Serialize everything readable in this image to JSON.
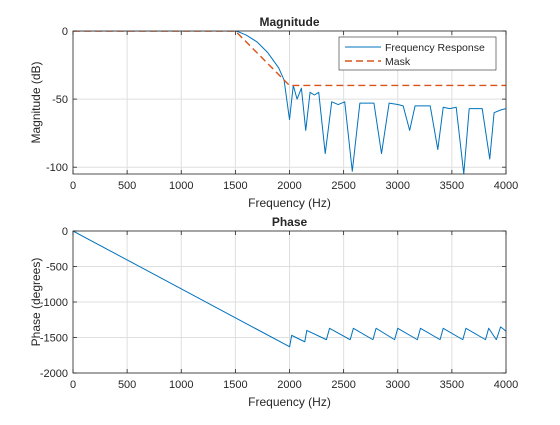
{
  "chart_data": [
    {
      "type": "line",
      "title": "Magnitude",
      "xlabel": "Frequency (Hz)",
      "ylabel": "Magnitude (dB)",
      "xlim": [
        0,
        4000
      ],
      "ylim": [
        -105,
        0
      ],
      "xticks": [
        0,
        500,
        1000,
        1500,
        2000,
        2500,
        3000,
        3500,
        4000
      ],
      "yticks": [
        0,
        -50,
        -100
      ],
      "grid": true,
      "legend_position": "top-right",
      "series": [
        {
          "name": "Frequency Response",
          "color": "#0072BD",
          "style": "solid",
          "x": [
            0,
            500,
            1000,
            1500,
            1525,
            1600,
            1700,
            1800,
            1900,
            1950,
            2000,
            2035,
            2070,
            2110,
            2150,
            2190,
            2230,
            2270,
            2330,
            2390,
            2450,
            2510,
            2580,
            2650,
            2720,
            2780,
            2850,
            2920,
            3000,
            3050,
            3110,
            3160,
            3230,
            3300,
            3370,
            3420,
            3480,
            3540,
            3610,
            3660,
            3720,
            3780,
            3850,
            3890,
            3950,
            4000
          ],
          "y": [
            0,
            0,
            0,
            0,
            -0.5,
            -3,
            -8,
            -16,
            -27,
            -36,
            -65,
            -40,
            -50,
            -42,
            -73,
            -45,
            -47,
            -45,
            -90,
            -52,
            -54,
            -52,
            -103,
            -53,
            -53,
            -53,
            -90,
            -53,
            -54,
            -55,
            -73,
            -55,
            -55,
            -55,
            -87,
            -56,
            -57,
            -56,
            -105,
            -57,
            -57,
            -57,
            -94,
            -60,
            -58,
            -57
          ]
        },
        {
          "name": "Mask",
          "color": "#D95319",
          "style": "dashed",
          "x": [
            0,
            1500,
            2000,
            4000
          ],
          "y": [
            0,
            0,
            -40,
            -40
          ]
        }
      ]
    },
    {
      "type": "line",
      "title": "Phase",
      "xlabel": "Frequency (Hz)",
      "ylabel": "Phase (degrees)",
      "xlim": [
        0,
        4000
      ],
      "ylim": [
        -2000,
        0
      ],
      "xticks": [
        0,
        500,
        1000,
        1500,
        2000,
        2500,
        3000,
        3500,
        4000
      ],
      "yticks": [
        0,
        -500,
        -1000,
        -1500,
        -2000
      ],
      "grid": true,
      "series": [
        {
          "color": "#0072BD",
          "style": "solid",
          "x": [
            0,
            2000,
            2001,
            2020,
            2140,
            2141,
            2160,
            2340,
            2341,
            2370,
            2560,
            2561,
            2590,
            2770,
            2771,
            2800,
            2970,
            2971,
            3000,
            3180,
            3181,
            3210,
            3390,
            3391,
            3420,
            3600,
            3601,
            3630,
            3810,
            3811,
            3840,
            3910,
            3911,
            3950,
            4000
          ],
          "y": [
            0,
            -1630,
            -1630,
            -1470,
            -1560,
            -1560,
            -1400,
            -1530,
            -1530,
            -1370,
            -1530,
            -1530,
            -1370,
            -1530,
            -1530,
            -1370,
            -1530,
            -1530,
            -1370,
            -1530,
            -1530,
            -1370,
            -1530,
            -1530,
            -1370,
            -1530,
            -1530,
            -1370,
            -1530,
            -1530,
            -1370,
            -1530,
            -1530,
            -1350,
            -1410
          ]
        }
      ]
    }
  ]
}
